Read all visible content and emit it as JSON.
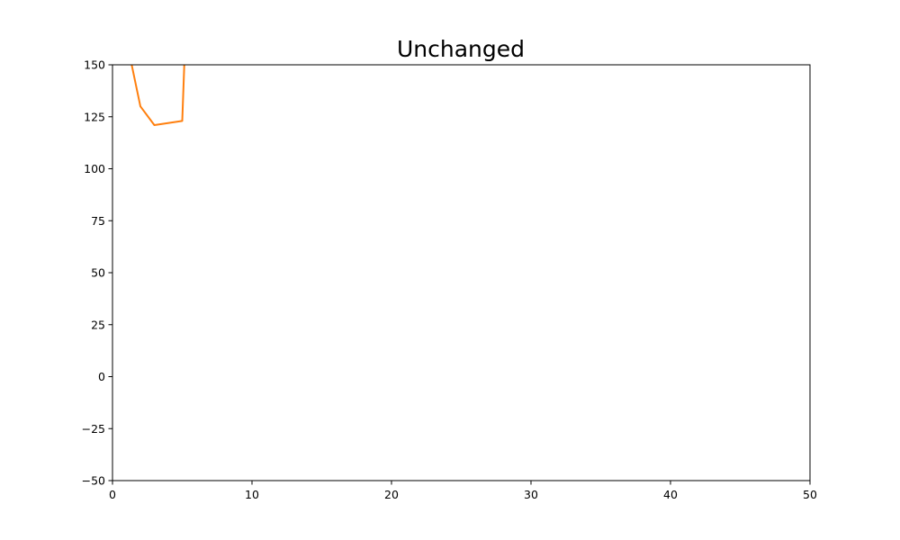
{
  "chart_data": {
    "type": "line",
    "title": "Unchanged",
    "xlabel": "",
    "ylabel": "",
    "xlim": [
      0,
      50
    ],
    "ylim": [
      -50,
      150
    ],
    "x_ticks": [
      0,
      10,
      20,
      30,
      40,
      50
    ],
    "x_tick_labels": [
      "0",
      "10",
      "20",
      "30",
      "40",
      "50"
    ],
    "y_ticks": [
      -50,
      -25,
      0,
      25,
      50,
      75,
      100,
      125,
      150
    ],
    "y_tick_labels": [
      "−50",
      "−25",
      "0",
      "25",
      "50",
      "75",
      "100",
      "125",
      "150"
    ],
    "grid": false,
    "legend": "none",
    "series": [
      {
        "color": "#ff7f0e",
        "x": [
          1,
          2,
          3,
          5,
          5.2
        ],
        "y": [
          162,
          130,
          121,
          123,
          160
        ]
      }
    ]
  }
}
